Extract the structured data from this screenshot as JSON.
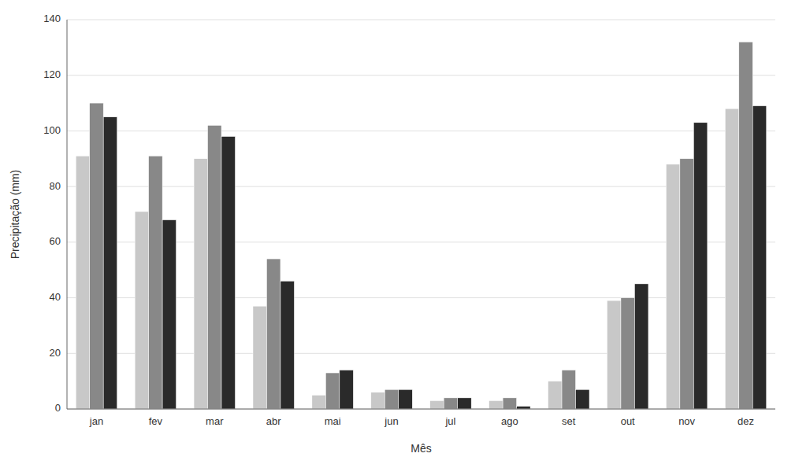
{
  "chart_data": {
    "type": "bar",
    "xlabel": "Mês",
    "ylabel": "Precipitação (mm)",
    "categories": [
      "jan",
      "fev",
      "mar",
      "abr",
      "mai",
      "jun",
      "jul",
      "ago",
      "set",
      "out",
      "nov",
      "dez"
    ],
    "series": [
      {
        "color": "#c8c8c8",
        "values": [
          91,
          71,
          90,
          37,
          5,
          6,
          3,
          3,
          10,
          39,
          88,
          108
        ]
      },
      {
        "color": "#888888",
        "values": [
          110,
          91,
          102,
          54,
          13,
          7,
          4,
          4,
          14,
          40,
          90,
          132
        ]
      },
      {
        "color": "#2a2a2a",
        "values": [
          105,
          68,
          98,
          46,
          14,
          7,
          4,
          1,
          7,
          45,
          103,
          109
        ]
      }
    ],
    "ylim": [
      0,
      140
    ],
    "yticks": [
      0,
      20,
      40,
      60,
      80,
      100,
      120,
      140
    ],
    "grid": true
  }
}
